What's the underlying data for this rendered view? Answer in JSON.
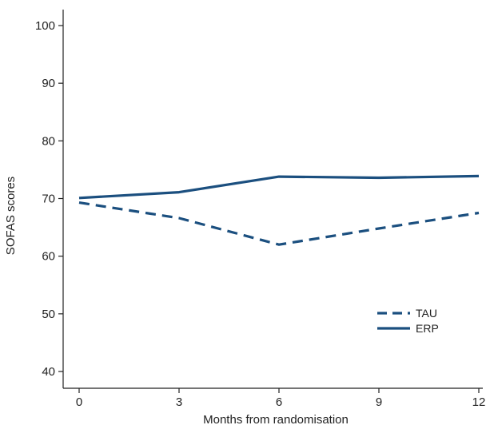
{
  "chart_data": {
    "type": "line",
    "title": "",
    "xlabel": "Months from randomisation",
    "ylabel": "SOFAS scores",
    "x": [
      0,
      3,
      6,
      9,
      12
    ],
    "x_tick_labels": [
      "0",
      "3",
      "6",
      "9",
      "12"
    ],
    "xlim": [
      0,
      12
    ],
    "ylim": [
      40,
      100
    ],
    "y_ticks": [
      40,
      50,
      60,
      70,
      80,
      90,
      100
    ],
    "y_tick_labels": [
      "40",
      "50",
      "60",
      "70",
      "80",
      "90",
      "100"
    ],
    "grid": false,
    "legend_position": "bottom-right",
    "series": [
      {
        "name": "TAU",
        "values": [
          69.3,
          66.6,
          62.0,
          64.8,
          67.5
        ],
        "line_style": "dashed",
        "color": "#1b4f7f"
      },
      {
        "name": "ERP",
        "values": [
          70.1,
          71.1,
          73.8,
          73.6,
          73.9
        ],
        "line_style": "solid",
        "color": "#1b4f7f"
      }
    ]
  }
}
